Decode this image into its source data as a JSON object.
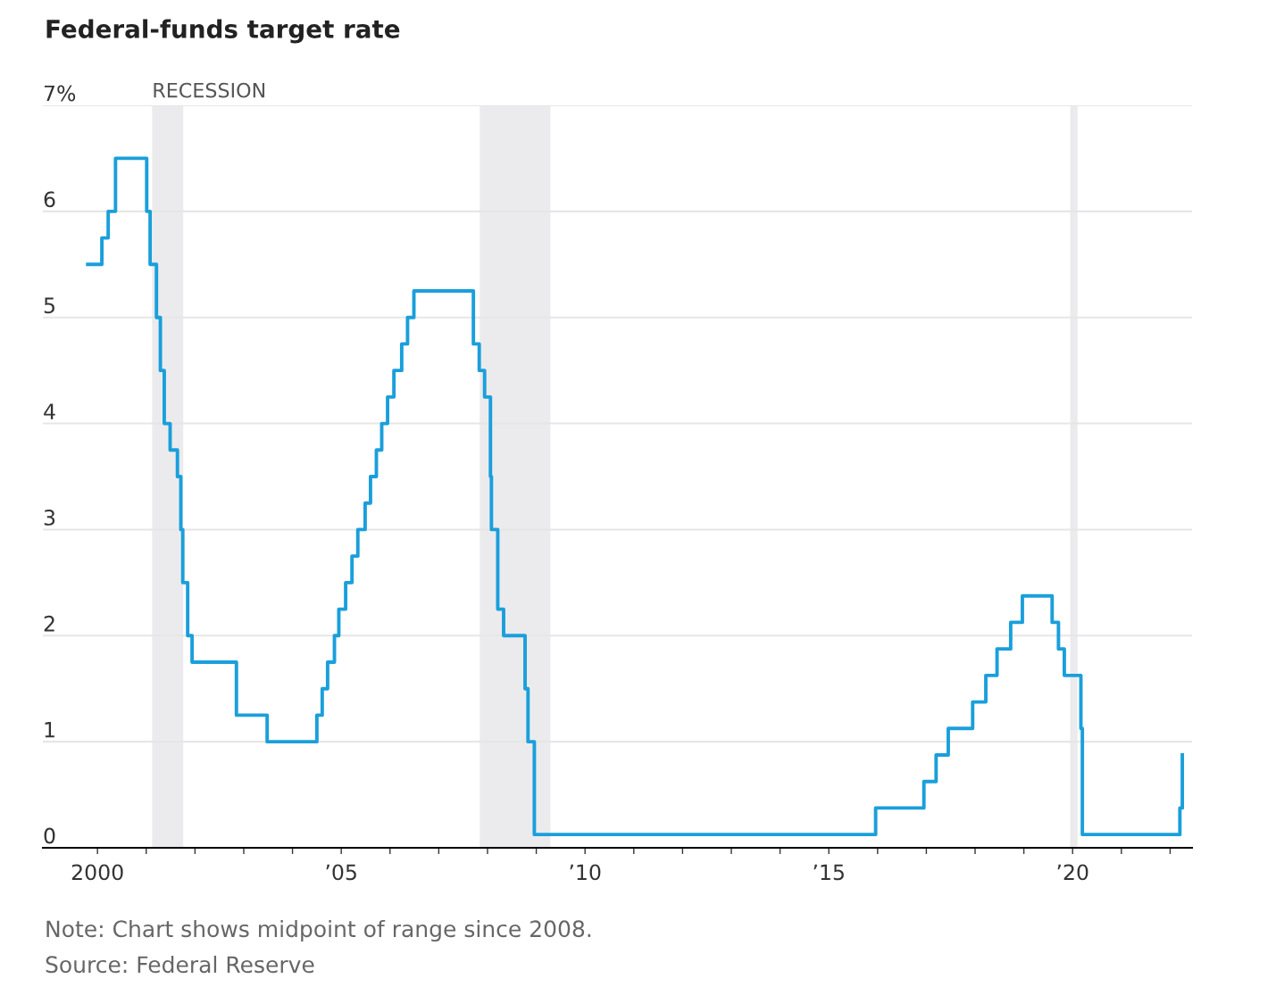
{
  "chart_data": {
    "type": "step",
    "title": "Federal-funds target rate",
    "x": [
      1999.8,
      2000.09,
      2000.22,
      2000.37,
      2001.01,
      2001.08,
      2001.21,
      2001.29,
      2001.37,
      2001.49,
      2001.64,
      2001.71,
      2001.75,
      2001.85,
      2001.94,
      2002.85,
      2003.48,
      2004.5,
      2004.61,
      2004.72,
      2004.86,
      2004.95,
      2005.09,
      2005.22,
      2005.34,
      2005.49,
      2005.6,
      2005.72,
      2005.83,
      2005.95,
      2006.08,
      2006.24,
      2006.36,
      2006.49,
      2007.71,
      2007.83,
      2007.94,
      2008.06,
      2008.08,
      2008.21,
      2008.33,
      2008.77,
      2008.83,
      2008.96,
      2015.96,
      2016.95,
      2017.2,
      2017.45,
      2017.95,
      2018.22,
      2018.45,
      2018.73,
      2018.97,
      2019.58,
      2019.71,
      2019.83,
      2020.17,
      2020.2,
      2022.2,
      2022.25
    ],
    "values": [
      5.5,
      5.75,
      6.0,
      6.5,
      6.0,
      5.5,
      5.0,
      4.5,
      4.0,
      3.75,
      3.5,
      3.0,
      2.5,
      2.0,
      1.75,
      1.25,
      1.0,
      1.25,
      1.5,
      1.75,
      2.0,
      2.25,
      2.5,
      2.75,
      3.0,
      3.25,
      3.5,
      3.75,
      4.0,
      4.25,
      4.5,
      4.75,
      5.0,
      5.25,
      4.75,
      4.5,
      4.25,
      3.5,
      3.0,
      2.25,
      2.0,
      1.5,
      1.0,
      0.125,
      0.375,
      0.625,
      0.875,
      1.125,
      1.375,
      1.625,
      1.875,
      2.125,
      2.375,
      2.125,
      1.875,
      1.625,
      1.125,
      0.125,
      0.375,
      0.875
    ],
    "color": "#1a9fdb",
    "xlim": [
      1998.88,
      2022.45
    ],
    "ylim": [
      0,
      7
    ],
    "xticks": [
      {
        "value": 2000,
        "label": "2000"
      },
      {
        "value": 2001,
        "label": null
      },
      {
        "value": 2002,
        "label": null
      },
      {
        "value": 2003,
        "label": null
      },
      {
        "value": 2004,
        "label": null
      },
      {
        "value": 2005,
        "label": "’05"
      },
      {
        "value": 2006,
        "label": null
      },
      {
        "value": 2007,
        "label": null
      },
      {
        "value": 2008,
        "label": null
      },
      {
        "value": 2009,
        "label": null
      },
      {
        "value": 2010,
        "label": "’10"
      },
      {
        "value": 2011,
        "label": null
      },
      {
        "value": 2012,
        "label": null
      },
      {
        "value": 2013,
        "label": null
      },
      {
        "value": 2014,
        "label": null
      },
      {
        "value": 2015,
        "label": "’15"
      },
      {
        "value": 2016,
        "label": null
      },
      {
        "value": 2017,
        "label": null
      },
      {
        "value": 2018,
        "label": null
      },
      {
        "value": 2019,
        "label": null
      },
      {
        "value": 2020,
        "label": "’20"
      },
      {
        "value": 2021,
        "label": null
      },
      {
        "value": 2022,
        "label": null
      }
    ],
    "yticks": [
      0,
      1,
      2,
      3,
      4,
      5,
      6,
      {
        "value": 7,
        "label": "7%"
      }
    ],
    "grid": "y",
    "bands": [
      {
        "axis": "x",
        "from": 2001.12,
        "to": 2001.76,
        "label": "RECESSION",
        "color": "#ebebed"
      },
      {
        "axis": "x",
        "from": 2007.84,
        "to": 2009.29,
        "label": null,
        "color": "#ebebed"
      },
      {
        "axis": "x",
        "from": 2019.95,
        "to": 2020.1,
        "label": null,
        "color": "#ebebed"
      }
    ],
    "annotations": [
      "Note: Chart shows midpoint of range since 2008.",
      "Source: Federal Reserve"
    ]
  }
}
